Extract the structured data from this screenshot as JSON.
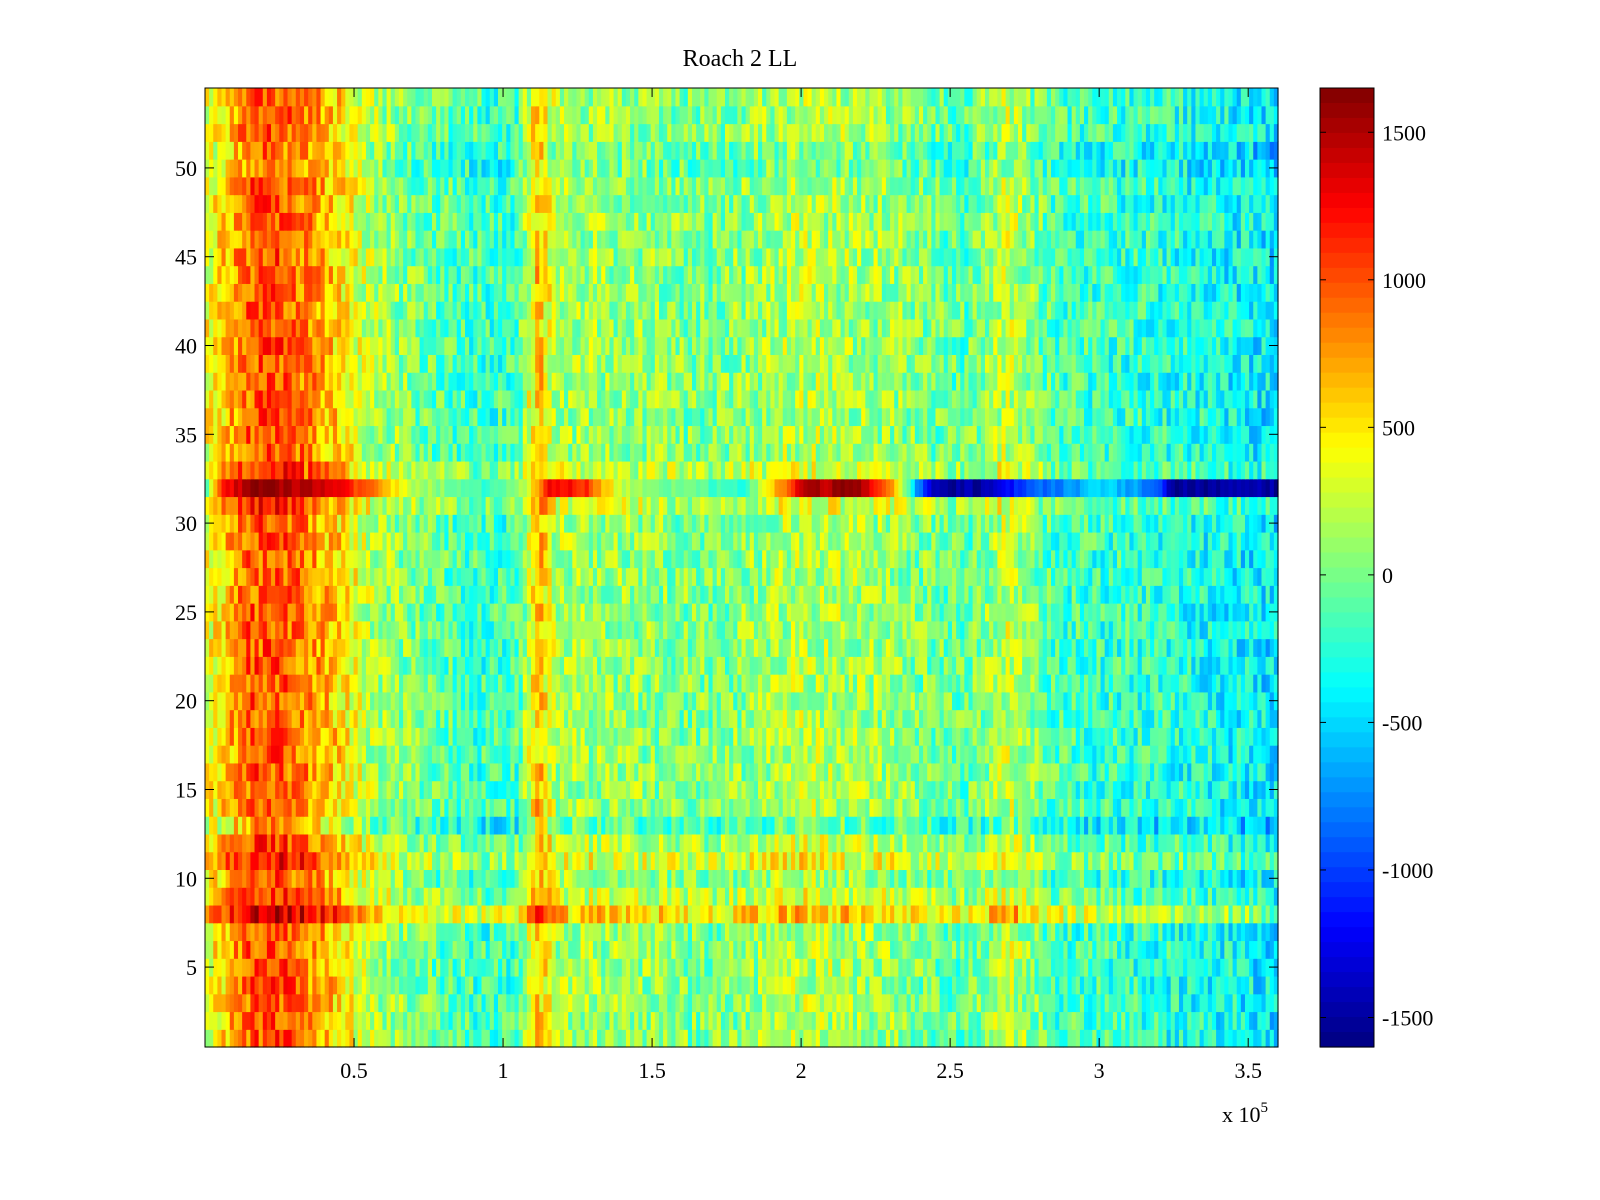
{
  "chart_data": {
    "type": "heatmap",
    "title": "Roach 2 LL",
    "xlabel": "",
    "ylabel": "",
    "colormap": "jet",
    "x_exponent_label": "x 10",
    "x_exponent_power": "5",
    "xlim": [
      0,
      360000
    ],
    "ylim": [
      0.5,
      54.5
    ],
    "clim": [
      -1600,
      1650
    ],
    "x_ticks": [
      {
        "value": 50000,
        "label": "0.5"
      },
      {
        "value": 100000,
        "label": "1"
      },
      {
        "value": 150000,
        "label": "1.5"
      },
      {
        "value": 200000,
        "label": "2"
      },
      {
        "value": 250000,
        "label": "2.5"
      },
      {
        "value": 300000,
        "label": "3"
      },
      {
        "value": 350000,
        "label": "3.5"
      }
    ],
    "y_ticks": [
      {
        "value": 5,
        "label": "5"
      },
      {
        "value": 10,
        "label": "10"
      },
      {
        "value": 15,
        "label": "15"
      },
      {
        "value": 20,
        "label": "20"
      },
      {
        "value": 25,
        "label": "25"
      },
      {
        "value": 30,
        "label": "30"
      },
      {
        "value": 35,
        "label": "35"
      },
      {
        "value": 40,
        "label": "40"
      },
      {
        "value": 45,
        "label": "45"
      },
      {
        "value": 50,
        "label": "50"
      }
    ],
    "colorbar_ticks": [
      {
        "value": 1500,
        "label": "1500"
      },
      {
        "value": 1000,
        "label": "1000"
      },
      {
        "value": 500,
        "label": "500"
      },
      {
        "value": 0,
        "label": "0"
      },
      {
        "value": -500,
        "label": "-500"
      },
      {
        "value": -1000,
        "label": "-1000"
      },
      {
        "value": -1500,
        "label": "-1500"
      }
    ],
    "rows": 54,
    "column_profile": [
      {
        "x": 0,
        "v": 350
      },
      {
        "x": 5000,
        "v": 500
      },
      {
        "x": 15000,
        "v": 950
      },
      {
        "x": 25000,
        "v": 1000
      },
      {
        "x": 35000,
        "v": 800
      },
      {
        "x": 45000,
        "v": 550
      },
      {
        "x": 55000,
        "v": 200
      },
      {
        "x": 75000,
        "v": -50
      },
      {
        "x": 95000,
        "v": -200
      },
      {
        "x": 105000,
        "v": -150
      },
      {
        "x": 112000,
        "v": 650
      },
      {
        "x": 118000,
        "v": 150
      },
      {
        "x": 140000,
        "v": 100
      },
      {
        "x": 170000,
        "v": 0
      },
      {
        "x": 200000,
        "v": 200
      },
      {
        "x": 230000,
        "v": 100
      },
      {
        "x": 255000,
        "v": -100
      },
      {
        "x": 270000,
        "v": 250
      },
      {
        "x": 285000,
        "v": -150
      },
      {
        "x": 320000,
        "v": -250
      },
      {
        "x": 345000,
        "v": -350
      },
      {
        "x": 360000,
        "v": -450
      }
    ],
    "row_32_profile": [
      {
        "x": 0,
        "v": -300
      },
      {
        "x": 5000,
        "v": 1100
      },
      {
        "x": 15000,
        "v": 1600
      },
      {
        "x": 40000,
        "v": 1450
      },
      {
        "x": 55000,
        "v": 900
      },
      {
        "x": 70000,
        "v": 200
      },
      {
        "x": 95000,
        "v": -200
      },
      {
        "x": 108000,
        "v": 200
      },
      {
        "x": 115000,
        "v": 1300
      },
      {
        "x": 128000,
        "v": 1100
      },
      {
        "x": 140000,
        "v": 200
      },
      {
        "x": 180000,
        "v": -300
      },
      {
        "x": 190000,
        "v": 500
      },
      {
        "x": 200000,
        "v": 1400
      },
      {
        "x": 220000,
        "v": 1600
      },
      {
        "x": 232000,
        "v": 600
      },
      {
        "x": 240000,
        "v": -900
      },
      {
        "x": 245000,
        "v": -1500
      },
      {
        "x": 262000,
        "v": -1500
      },
      {
        "x": 275000,
        "v": -1000
      },
      {
        "x": 300000,
        "v": -500
      },
      {
        "x": 318000,
        "v": -800
      },
      {
        "x": 325000,
        "v": -1500
      },
      {
        "x": 360000,
        "v": -1500
      }
    ],
    "row_offsets": [
      {
        "row": 8,
        "v": 450
      },
      {
        "row": 9,
        "v": 150
      },
      {
        "row": 11,
        "v": 250
      },
      {
        "row": 12,
        "v": 100
      },
      {
        "row": 13,
        "v": -200
      },
      {
        "row": 31,
        "v": 150
      },
      {
        "row": 33,
        "v": 150
      },
      {
        "row": 50,
        "v": -100
      },
      {
        "row": 51,
        "v": -100
      }
    ]
  }
}
